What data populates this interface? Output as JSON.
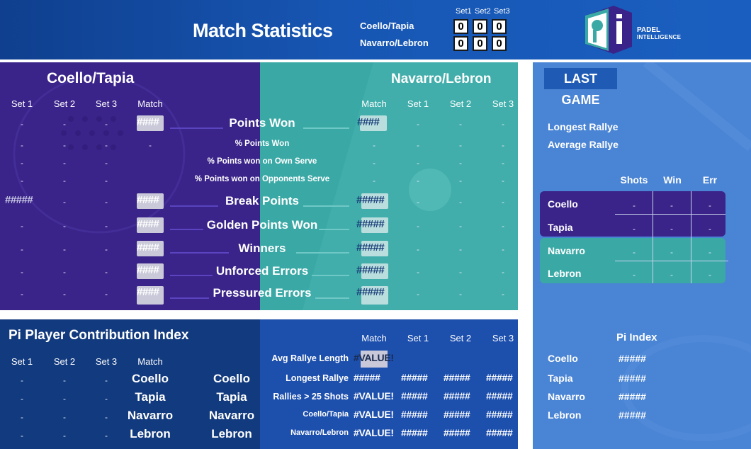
{
  "header": {
    "title": "Match Statistics",
    "scoreboard": {
      "set_headers": [
        "Set1",
        "Set2",
        "Set3"
      ],
      "teams": [
        {
          "name": "Coello/Tapia",
          "scores": [
            "0",
            "0",
            "0"
          ]
        },
        {
          "name": "Navarro/Lebron",
          "scores": [
            "0",
            "0",
            "0"
          ]
        }
      ]
    },
    "logo": {
      "icon": "padel-intelligence-logo-icon",
      "line1": "PADEL",
      "line2": "INTELLIGENCE"
    }
  },
  "match_stats": {
    "left_team": "Coello/Tapia",
    "right_team": "Navarro/Lebron",
    "left_columns": [
      "Set 1",
      "Set 2",
      "Set 3",
      "Match"
    ],
    "right_columns": [
      "Match",
      "Set 1",
      "Set 2",
      "Set 3"
    ],
    "dash": "-",
    "rows": [
      {
        "label": "Points Won",
        "left_set1": "-",
        "left_match": "####",
        "right_match": "####"
      },
      {
        "label": "% Points Won",
        "left_set1": "-",
        "left_match": "-",
        "right_match": "-"
      },
      {
        "label": "% Points won on Own Serve",
        "left_set1": "-",
        "left_match": "",
        "right_match": "-"
      },
      {
        "label": "% Points won on Opponents Serve",
        "left_set1": "-",
        "left_match": "",
        "right_match": "-"
      },
      {
        "label": "Break Points",
        "left_set1": "#####",
        "left_match": "####",
        "right_match": "#####"
      },
      {
        "label": "Golden Points Won",
        "left_set1": "-",
        "left_match": "####",
        "right_match": "#####"
      },
      {
        "label": "Winners",
        "left_set1": "-",
        "left_match": "####",
        "right_match": "#####"
      },
      {
        "label": "Unforced Errors",
        "left_set1": "-",
        "left_match": "####",
        "right_match": "#####"
      },
      {
        "label": "Pressured Errors",
        "left_set1": "-",
        "left_match": "####",
        "right_match": "#####"
      }
    ]
  },
  "last_game": {
    "title": "LAST GAME",
    "longest_rallye": "Longest Rallye",
    "average_rallye": "Average Rallye",
    "columns": [
      "Shots",
      "Win",
      "Err"
    ],
    "players": [
      {
        "name": "Coello",
        "shots": "-",
        "win": "-",
        "err": "-"
      },
      {
        "name": "Tapia",
        "shots": "-",
        "win": "-",
        "err": "-"
      },
      {
        "name": "Navarro",
        "shots": "-",
        "win": "-",
        "err": "-"
      },
      {
        "name": "Lebron",
        "shots": "-",
        "win": "-",
        "err": "-"
      }
    ]
  },
  "pi_contribution": {
    "title": "Pi Player Contribution Index",
    "columns": [
      "Set 1",
      "Set 2",
      "Set 3",
      "Match"
    ],
    "players": [
      "Coello",
      "Tapia",
      "Navarro",
      "Lebron"
    ]
  },
  "rally_stats": {
    "columns": [
      "Match",
      "Set 1",
      "Set 2",
      "Set 3"
    ],
    "rows": [
      {
        "label": "Avg Rallye Length",
        "match": "#VALUE!",
        "set1": "",
        "set2": "",
        "set3": ""
      },
      {
        "label": "Longest Rallye",
        "match": "#####",
        "set1": "#####",
        "set2": "#####",
        "set3": "#####"
      },
      {
        "label": "Rallies > 25 Shots",
        "match": "#VALUE!",
        "set1": "#####",
        "set2": "#####",
        "set3": "#####"
      },
      {
        "label": "Coello/Tapia",
        "match": "#VALUE!",
        "set1": "#####",
        "set2": "#####",
        "set3": "#####"
      },
      {
        "label": "Navarro/Lebron",
        "match": "#VALUE!",
        "set1": "#####",
        "set2": "#####",
        "set3": "#####"
      }
    ]
  },
  "pi_index": {
    "title": "Pi Index",
    "players": [
      {
        "name": "Coello",
        "value": "#####"
      },
      {
        "name": "Tapia",
        "value": "#####"
      },
      {
        "name": "Navarro",
        "value": "#####"
      },
      {
        "name": "Lebron",
        "value": "#####"
      }
    ]
  },
  "colors": {
    "header_blue": "#1756b3",
    "team1_purple": "#3a2389",
    "team2_teal": "#3aa9a6",
    "last_game_blue": "#4a84d4",
    "pi_dark": "#123a7e"
  }
}
